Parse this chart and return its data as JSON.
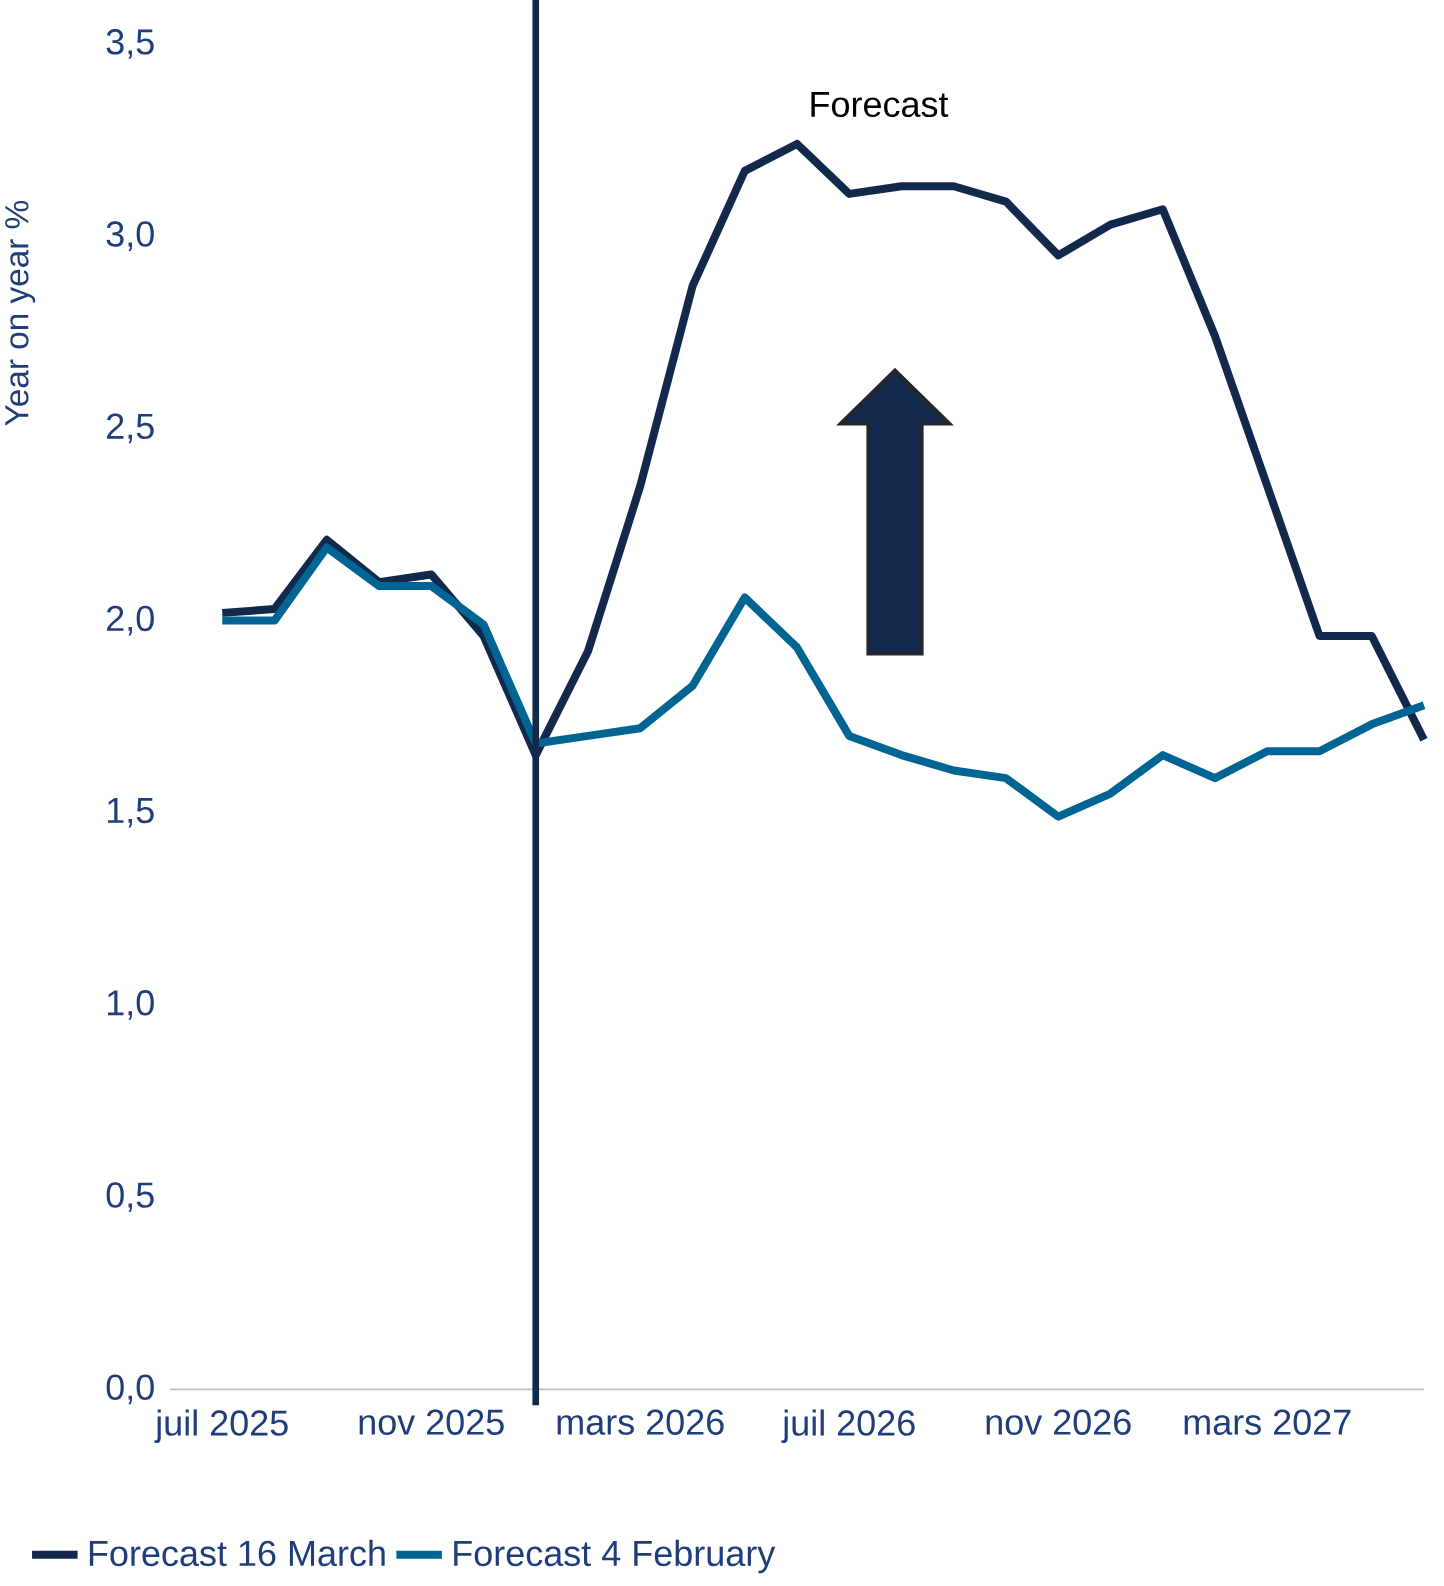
{
  "chart_data": {
    "type": "line",
    "ylabel": "Year on year %",
    "annotations": [
      "Forecast"
    ],
    "x": [
      "2025-07",
      "2025-08",
      "2025-09",
      "2025-10",
      "2025-11",
      "2025-12",
      "2026-01",
      "2026-02",
      "2026-03",
      "2026-04",
      "2026-05",
      "2026-06",
      "2026-07",
      "2026-08",
      "2026-09",
      "2026-10",
      "2026-11",
      "2026-12",
      "2027-01",
      "2027-02",
      "2027-03",
      "2027-04",
      "2027-05",
      "2027-06"
    ],
    "series": [
      {
        "name": "Forecast 16 March",
        "color": "#13294b",
        "values": [
          2.02,
          2.03,
          2.21,
          2.1,
          2.12,
          1.96,
          1.65,
          1.92,
          2.35,
          2.87,
          3.17,
          3.24,
          3.11,
          3.13,
          3.13,
          3.09,
          2.95,
          3.03,
          3.07,
          2.74,
          2.35,
          1.96,
          1.96,
          1.69
        ]
      },
      {
        "name": "Forecast 4 February",
        "color": "#006592",
        "values": [
          2.0,
          2.0,
          2.19,
          2.09,
          2.09,
          1.99,
          1.68,
          1.7,
          1.72,
          1.83,
          2.06,
          1.93,
          1.7,
          1.65,
          1.61,
          1.59,
          1.49,
          1.55,
          1.65,
          1.59,
          1.66,
          1.66,
          1.73,
          1.78
        ]
      }
    ],
    "xticks": [
      {
        "value": "2025-07",
        "label": "juil 2025"
      },
      {
        "value": "2025-11",
        "label": "nov 2025"
      },
      {
        "value": "2026-03",
        "label": "mars 2026"
      },
      {
        "value": "2026-07",
        "label": "juil 2026"
      },
      {
        "value": "2026-11",
        "label": "nov 2026"
      },
      {
        "value": "2027-03",
        "label": "mars 2027"
      }
    ],
    "xlim": [
      "2025-06",
      "2027-06"
    ],
    "ylim": [
      0,
      3.5
    ],
    "yticks": [
      {
        "value": 0,
        "label": "0,0"
      },
      {
        "value": 0.5,
        "label": "0,5"
      },
      {
        "value": 1,
        "label": "1,0"
      },
      {
        "value": 1.5,
        "label": "1,5"
      },
      {
        "value": 2,
        "label": "2,0"
      },
      {
        "value": 2.5,
        "label": "2,5"
      },
      {
        "value": 3,
        "label": "3,0"
      },
      {
        "value": 3.5,
        "label": "3,5"
      }
    ],
    "ref_lines": [
      {
        "axis": "x",
        "value": "2026-01",
        "color": "#13294b"
      }
    ],
    "grid": false,
    "legend": "bottom",
    "marker": "none",
    "line_style": "solid"
  }
}
